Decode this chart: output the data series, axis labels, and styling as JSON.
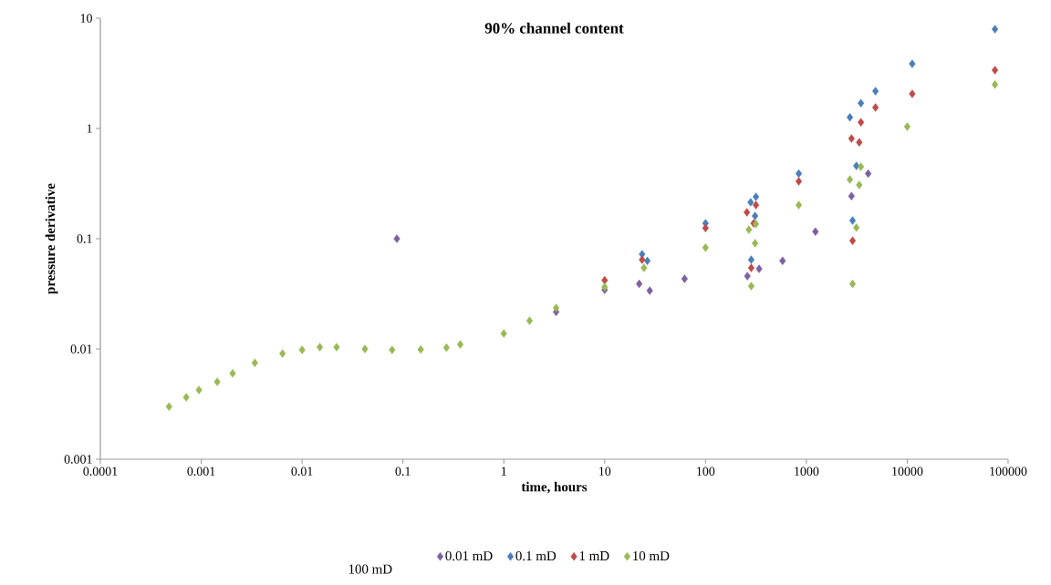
{
  "chart_data": {
    "type": "scatter",
    "title": "90% channel content",
    "xlabel": "time, hours",
    "ylabel": "pressure derivative",
    "log": "xy",
    "grid": false,
    "legend": "bottom",
    "marker": "diamond",
    "xlim": [
      0.0001,
      100000
    ],
    "xticks": [
      0.0001,
      0.001,
      0.01,
      0.1,
      1,
      10,
      100,
      1000,
      10000,
      100000
    ],
    "ylim": [
      0.001,
      10
    ],
    "yticks": [
      0.001,
      0.01,
      0.1,
      1,
      10
    ],
    "annotations": [
      "100 mD"
    ],
    "series": [
      {
        "name": "0.01 mD",
        "color": "#7d60a0",
        "x": [
          0.087,
          3.3,
          10,
          22,
          28,
          62,
          260,
          340,
          580,
          1230,
          2800,
          4100
        ],
        "values": [
          0.1,
          0.0217,
          0.0344,
          0.039,
          0.0338,
          0.0433,
          0.0458,
          0.0533,
          0.063,
          0.116,
          0.244,
          0.39
        ]
      },
      {
        "name": "0.1 mD",
        "color": "#4a7ebb",
        "x": [
          23.5,
          26.5,
          100,
          280,
          284,
          310,
          316,
          840,
          2700,
          2870,
          3130,
          3470,
          4840,
          11200,
          74000
        ],
        "values": [
          0.0724,
          0.063,
          0.138,
          0.214,
          0.0645,
          0.161,
          0.24,
          0.39,
          1.26,
          0.146,
          0.458,
          1.7,
          2.18,
          3.86,
          7.95
        ]
      },
      {
        "name": "1 mD",
        "color": "#be4b48",
        "x": [
          10,
          23.5,
          100,
          257,
          284,
          300,
          316,
          840,
          2800,
          2870,
          3340,
          3470,
          4840,
          11200,
          74000
        ],
        "values": [
          0.042,
          0.0645,
          0.125,
          0.174,
          0.0544,
          0.138,
          0.202,
          0.332,
          0.81,
          0.096,
          0.75,
          1.14,
          1.55,
          2.06,
          3.38
        ]
      },
      {
        "name": "10 mD",
        "color": "#98b954",
        "x": [
          0.00048,
          0.00071,
          0.00095,
          0.00144,
          0.00205,
          0.0034,
          0.0064,
          0.01,
          0.015,
          0.022,
          0.042,
          0.078,
          0.15,
          0.27,
          0.37,
          1,
          1.8,
          3.3,
          10,
          24.5,
          100,
          269,
          284,
          310,
          316,
          840,
          2700,
          2870,
          3130,
          3340,
          3470,
          10000,
          74000
        ],
        "values": [
          0.003,
          0.00365,
          0.00425,
          0.00504,
          0.006,
          0.0075,
          0.0091,
          0.0098,
          0.0104,
          0.0104,
          0.01,
          0.0098,
          0.0099,
          0.0103,
          0.011,
          0.0138,
          0.018,
          0.0236,
          0.0365,
          0.0544,
          0.083,
          0.121,
          0.0372,
          0.091,
          0.136,
          0.202,
          0.344,
          0.039,
          0.126,
          0.308,
          0.45,
          1.04,
          2.5
        ]
      }
    ]
  }
}
